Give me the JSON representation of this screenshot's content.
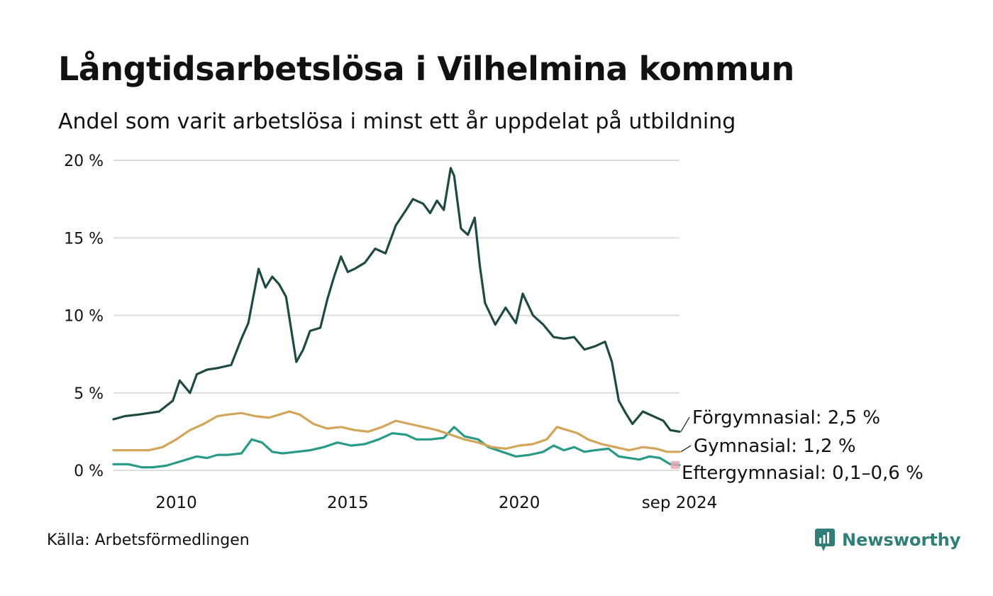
{
  "header": {
    "title": "Långtidsarbetslösa i Vilhelmina kommun",
    "subtitle": "Andel som varit arbetslösa i minst ett år uppdelat på utbildning"
  },
  "footer": {
    "source": "Källa: Arbetsförmedlingen",
    "brand": "Newsworthy"
  },
  "colors": {
    "forgymnasial": "#1f4a44",
    "gymnasial": "#d1a55a",
    "eftergymnasial": "#2a9a88",
    "eftergymnasial_band": "#e7a8b4",
    "grid": "#dddddd",
    "brand": "#2f7f78"
  },
  "chart_data": {
    "type": "line",
    "title": "Långtidsarbetslösa i Vilhelmina kommun",
    "subtitle": "Andel som varit arbetslösa i minst ett år uppdelat på utbildning",
    "xlabel": "",
    "ylabel": "",
    "x_range": [
      2008.17,
      2024.67
    ],
    "ylim": [
      0,
      20
    ],
    "y_ticks": [
      {
        "value": 0,
        "label": "0 %"
      },
      {
        "value": 5,
        "label": "5 %"
      },
      {
        "value": 10,
        "label": "10 %"
      },
      {
        "value": 15,
        "label": "15 %"
      },
      {
        "value": 20,
        "label": "20 %"
      }
    ],
    "x_ticks": [
      {
        "value": 2010,
        "label": "2010"
      },
      {
        "value": 2015,
        "label": "2015"
      },
      {
        "value": 2020,
        "label": "2020"
      },
      {
        "value": 2024.67,
        "label": "sep 2024"
      }
    ],
    "grid": true,
    "legend": "direct labels at line ends (right)",
    "series": [
      {
        "key": "forgymnasial",
        "end_label": "Förgymnasial: 2,5 %",
        "x": [
          2008.17,
          2008.5,
          2008.9,
          2009.2,
          2009.5,
          2009.9,
          2010.1,
          2010.4,
          2010.6,
          2010.9,
          2011.2,
          2011.6,
          2011.9,
          2012.1,
          2012.4,
          2012.6,
          2012.8,
          2013.0,
          2013.2,
          2013.5,
          2013.7,
          2013.9,
          2014.2,
          2014.4,
          2014.6,
          2014.8,
          2015.0,
          2015.2,
          2015.5,
          2015.8,
          2016.1,
          2016.4,
          2016.7,
          2016.9,
          2017.2,
          2017.4,
          2017.6,
          2017.8,
          2018.0,
          2018.1,
          2018.3,
          2018.5,
          2018.7,
          2018.85,
          2019.0,
          2019.3,
          2019.6,
          2019.9,
          2020.1,
          2020.4,
          2020.7,
          2021.0,
          2021.3,
          2021.6,
          2021.9,
          2022.2,
          2022.5,
          2022.7,
          2022.9,
          2023.1,
          2023.3,
          2023.6,
          2023.9,
          2024.2,
          2024.4,
          2024.67
        ],
        "values": [
          3.3,
          3.5,
          3.6,
          3.7,
          3.8,
          4.5,
          5.8,
          5.0,
          6.2,
          6.5,
          6.6,
          6.8,
          8.5,
          9.5,
          13.0,
          11.8,
          12.5,
          12.0,
          11.2,
          7.0,
          7.8,
          9.0,
          9.2,
          11.0,
          12.5,
          13.8,
          12.8,
          13.0,
          13.4,
          14.3,
          14.0,
          15.8,
          16.8,
          17.5,
          17.2,
          16.6,
          17.4,
          16.8,
          19.5,
          19.0,
          15.6,
          15.2,
          16.3,
          13.2,
          10.8,
          9.4,
          10.5,
          9.5,
          11.4,
          10.0,
          9.4,
          8.6,
          8.5,
          8.6,
          7.8,
          8.0,
          8.3,
          7.0,
          4.5,
          3.7,
          3.0,
          3.8,
          3.5,
          3.2,
          2.6,
          2.5
        ]
      },
      {
        "key": "gymnasial",
        "end_label": "Gymnasial: 1,2 %",
        "x": [
          2008.17,
          2008.7,
          2009.2,
          2009.6,
          2010.0,
          2010.4,
          2010.8,
          2011.2,
          2011.5,
          2011.9,
          2012.3,
          2012.7,
          2013.0,
          2013.3,
          2013.6,
          2014.0,
          2014.4,
          2014.8,
          2015.2,
          2015.6,
          2016.0,
          2016.4,
          2016.8,
          2017.2,
          2017.6,
          2018.0,
          2018.4,
          2018.8,
          2019.2,
          2019.6,
          2020.0,
          2020.4,
          2020.8,
          2021.1,
          2021.4,
          2021.7,
          2022.0,
          2022.4,
          2022.8,
          2023.2,
          2023.6,
          2024.0,
          2024.3,
          2024.67
        ],
        "values": [
          1.3,
          1.3,
          1.3,
          1.5,
          2.0,
          2.6,
          3.0,
          3.5,
          3.6,
          3.7,
          3.5,
          3.4,
          3.6,
          3.8,
          3.6,
          3.0,
          2.7,
          2.8,
          2.6,
          2.5,
          2.8,
          3.2,
          3.0,
          2.8,
          2.6,
          2.3,
          2.0,
          1.8,
          1.5,
          1.4,
          1.6,
          1.7,
          2.0,
          2.8,
          2.6,
          2.4,
          2.0,
          1.7,
          1.5,
          1.3,
          1.5,
          1.4,
          1.2,
          1.2
        ]
      },
      {
        "key": "eftergymnasial",
        "end_label": "Eftergymnasial: 0,1–0,6 %",
        "x": [
          2008.17,
          2008.6,
          2009.0,
          2009.3,
          2009.7,
          2010.0,
          2010.3,
          2010.6,
          2010.9,
          2011.2,
          2011.5,
          2011.9,
          2012.2,
          2012.5,
          2012.8,
          2013.1,
          2013.5,
          2013.9,
          2014.3,
          2014.7,
          2015.1,
          2015.5,
          2015.9,
          2016.3,
          2016.7,
          2017.0,
          2017.4,
          2017.8,
          2018.1,
          2018.4,
          2018.8,
          2019.1,
          2019.5,
          2019.9,
          2020.3,
          2020.7,
          2021.0,
          2021.3,
          2021.6,
          2021.9,
          2022.2,
          2022.6,
          2022.9,
          2023.2,
          2023.5,
          2023.8,
          2024.1,
          2024.4,
          2024.67
        ],
        "values": [
          0.4,
          0.4,
          0.2,
          0.2,
          0.3,
          0.5,
          0.7,
          0.9,
          0.8,
          1.0,
          1.0,
          1.1,
          2.0,
          1.8,
          1.2,
          1.1,
          1.2,
          1.3,
          1.5,
          1.8,
          1.6,
          1.7,
          2.0,
          2.4,
          2.3,
          2.0,
          2.0,
          2.1,
          2.8,
          2.2,
          2.0,
          1.5,
          1.2,
          0.9,
          1.0,
          1.2,
          1.6,
          1.3,
          1.5,
          1.2,
          1.3,
          1.4,
          0.9,
          0.8,
          0.7,
          0.9,
          0.8,
          0.4,
          0.35
        ],
        "band_min": 0.1,
        "band_max": 0.6
      }
    ]
  }
}
